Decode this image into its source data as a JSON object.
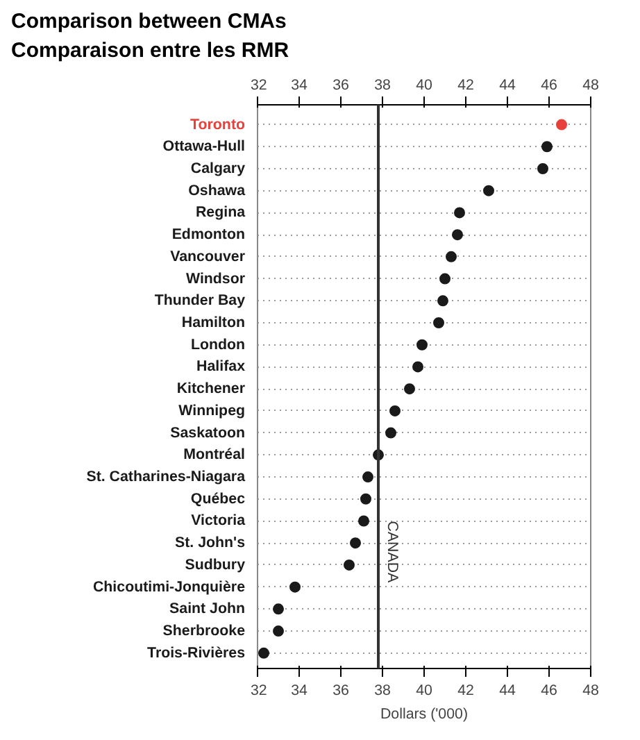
{
  "chart_data": {
    "type": "scatter",
    "title": "Comparison between CMAs\nComparaison entre les RMR",
    "xlabel": "Dollars ('000)",
    "orientation": "horizontal",
    "categories": [
      "Toronto",
      "Ottawa-Hull",
      "Calgary",
      "Oshawa",
      "Regina",
      "Edmonton",
      "Vancouver",
      "Windsor",
      "Thunder Bay",
      "Hamilton",
      "London",
      "Halifax",
      "Kitchener",
      "Winnipeg",
      "Saskatoon",
      "Montréal",
      "St. Catharines-Niagara",
      "Québec",
      "Victoria",
      "St. John's",
      "Sudbury",
      "Chicoutimi-Jonquière",
      "Saint John",
      "Sherbrooke",
      "Trois-Rivières"
    ],
    "values": [
      46.6,
      45.9,
      45.7,
      43.1,
      41.7,
      41.6,
      41.3,
      41.0,
      40.9,
      40.7,
      39.9,
      39.7,
      39.3,
      38.6,
      38.4,
      37.8,
      37.3,
      37.2,
      37.1,
      36.7,
      36.4,
      33.8,
      33.0,
      33.0,
      32.3
    ],
    "colors": [
      "#e8413c",
      "#1a1a1a",
      "#1a1a1a",
      "#1a1a1a",
      "#1a1a1a",
      "#1a1a1a",
      "#1a1a1a",
      "#1a1a1a",
      "#1a1a1a",
      "#1a1a1a",
      "#1a1a1a",
      "#1a1a1a",
      "#1a1a1a",
      "#1a1a1a",
      "#1a1a1a",
      "#1a1a1a",
      "#1a1a1a",
      "#1a1a1a",
      "#1a1a1a",
      "#1a1a1a",
      "#1a1a1a",
      "#1a1a1a",
      "#1a1a1a",
      "#1a1a1a",
      "#1a1a1a"
    ],
    "xlim": [
      32,
      48
    ],
    "xticks": [
      32,
      34,
      36,
      38,
      40,
      42,
      44,
      46,
      48
    ],
    "x2lim": [
      32,
      48
    ],
    "x2ticks": [
      32,
      34,
      36,
      38,
      40,
      42,
      44,
      46,
      48
    ],
    "ref_lines": [
      {
        "axis": "x",
        "value": 37.8,
        "label": "CANADA",
        "color": "#333333"
      }
    ],
    "grid": "y",
    "marker": "circle"
  }
}
